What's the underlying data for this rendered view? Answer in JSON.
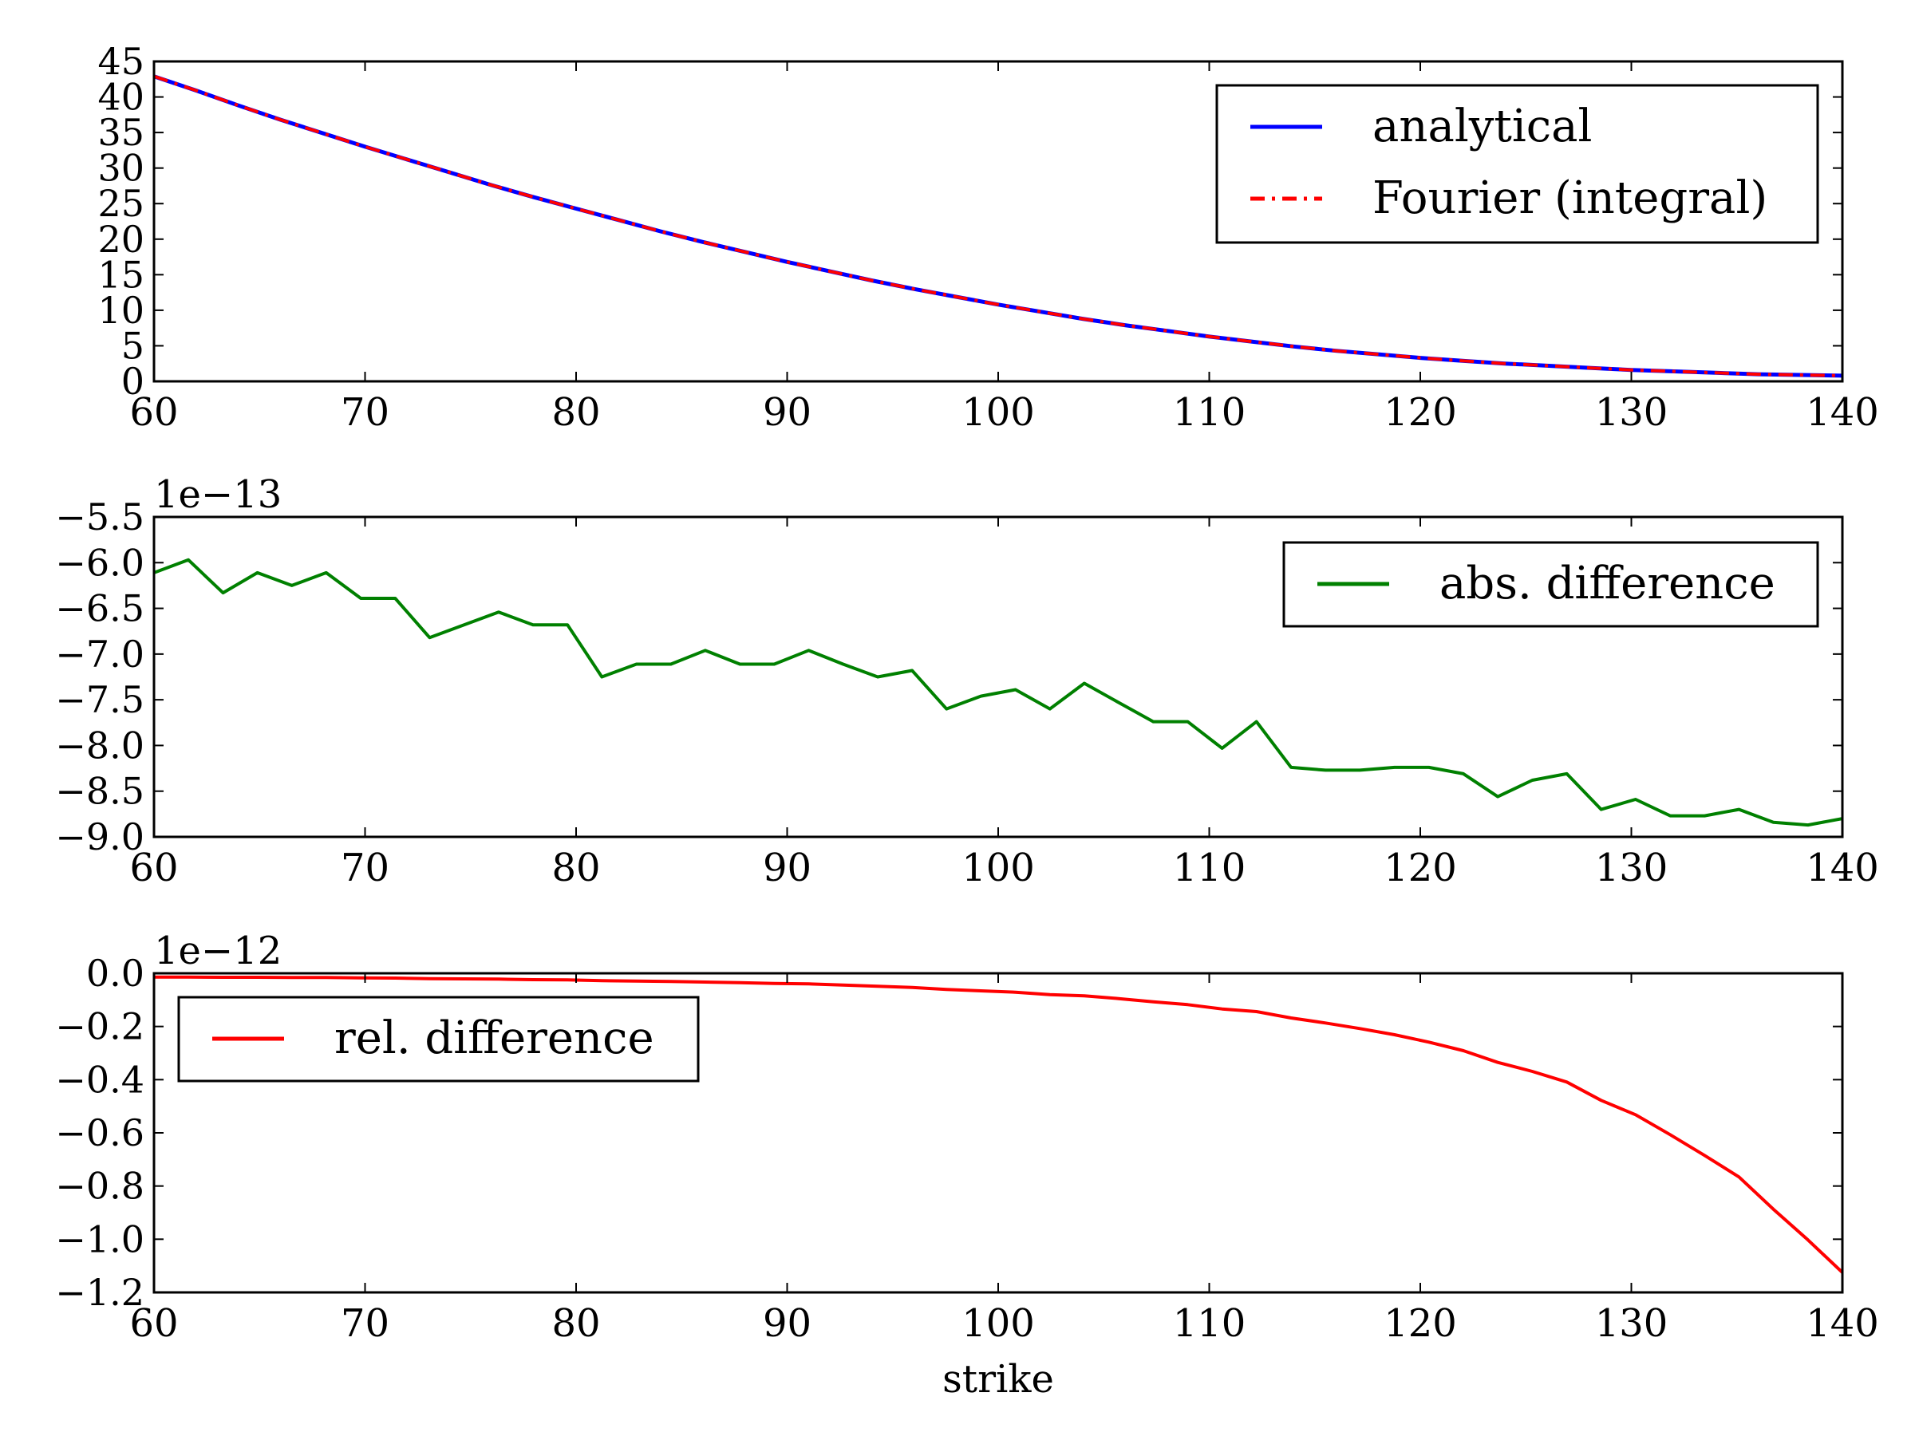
{
  "chart_data": [
    {
      "type": "line",
      "title": "",
      "xlabel": "",
      "ylabel": "",
      "xlim": [
        60,
        140
      ],
      "ylim": [
        0,
        45
      ],
      "xticks": [
        "60",
        "70",
        "80",
        "90",
        "100",
        "110",
        "120",
        "130",
        "140"
      ],
      "yticks": [
        "0",
        "5",
        "10",
        "15",
        "20",
        "25",
        "30",
        "35",
        "40",
        "45"
      ],
      "offset_text": "",
      "legend_position": "upper right",
      "series": [
        {
          "name": "analytical",
          "color": "#0000ff",
          "dash": "solid",
          "x": [
            60,
            62,
            64,
            66,
            68,
            70,
            72,
            74,
            76,
            78,
            80,
            82,
            84,
            86,
            88,
            90,
            92,
            94,
            96,
            98,
            100,
            102,
            104,
            106,
            108,
            110,
            112,
            114,
            116,
            118,
            120,
            122,
            124,
            126,
            128,
            130,
            132,
            134,
            136,
            138,
            140
          ],
          "y": [
            42.9,
            40.9,
            38.8,
            36.8,
            34.9,
            33.0,
            31.2,
            29.4,
            27.6,
            25.9,
            24.3,
            22.7,
            21.1,
            19.6,
            18.2,
            16.8,
            15.5,
            14.2,
            13.0,
            11.9,
            10.8,
            9.8,
            8.8,
            7.9,
            7.1,
            6.3,
            5.6,
            4.9,
            4.3,
            3.8,
            3.3,
            2.9,
            2.5,
            2.2,
            1.9,
            1.6,
            1.4,
            1.2,
            1.0,
            0.9,
            0.8
          ]
        },
        {
          "name": "Fourier (integral)",
          "color": "#ff0000",
          "dash": "dashdot",
          "x": [
            60,
            62,
            64,
            66,
            68,
            70,
            72,
            74,
            76,
            78,
            80,
            82,
            84,
            86,
            88,
            90,
            92,
            94,
            96,
            98,
            100,
            102,
            104,
            106,
            108,
            110,
            112,
            114,
            116,
            118,
            120,
            122,
            124,
            126,
            128,
            130,
            132,
            134,
            136,
            138,
            140
          ],
          "y": [
            42.9,
            40.9,
            38.8,
            36.8,
            34.9,
            33.0,
            31.2,
            29.4,
            27.6,
            25.9,
            24.3,
            22.7,
            21.1,
            19.6,
            18.2,
            16.8,
            15.5,
            14.2,
            13.0,
            11.9,
            10.8,
            9.8,
            8.8,
            7.9,
            7.1,
            6.3,
            5.6,
            4.9,
            4.3,
            3.8,
            3.3,
            2.9,
            2.5,
            2.2,
            1.9,
            1.6,
            1.4,
            1.2,
            1.0,
            0.9,
            0.8
          ]
        }
      ]
    },
    {
      "type": "line",
      "title": "",
      "xlabel": "",
      "ylabel": "",
      "xlim": [
        60,
        140
      ],
      "ylim": [
        -9.0,
        -5.5
      ],
      "xticks": [
        "60",
        "70",
        "80",
        "90",
        "100",
        "110",
        "120",
        "130",
        "140"
      ],
      "yticks": [
        "−9.0",
        "−8.5",
        "−8.0",
        "−7.5",
        "−7.0",
        "−6.5",
        "−6.0",
        "−5.5"
      ],
      "offset_text": "1e−13",
      "legend_position": "upper right",
      "series": [
        {
          "name": "abs. difference",
          "color": "#008000",
          "dash": "solid",
          "x": [
            60.0,
            61.63,
            63.27,
            64.9,
            66.53,
            68.16,
            69.8,
            71.43,
            73.06,
            74.69,
            76.33,
            77.96,
            79.59,
            81.22,
            82.86,
            84.49,
            86.12,
            87.76,
            89.39,
            91.02,
            92.65,
            94.29,
            95.92,
            97.55,
            99.18,
            100.82,
            102.45,
            104.08,
            105.71,
            107.35,
            108.98,
            110.61,
            112.24,
            113.88,
            115.51,
            117.14,
            118.78,
            120.41,
            122.04,
            123.67,
            125.31,
            126.94,
            128.57,
            130.2,
            131.84,
            133.47,
            135.1,
            136.73,
            138.37,
            140.0
          ],
          "y": [
            -6.11,
            -5.97,
            -6.33,
            -6.11,
            -6.25,
            -6.11,
            -6.39,
            -6.39,
            -6.82,
            -6.68,
            -6.54,
            -6.68,
            -6.68,
            -7.25,
            -7.11,
            -7.11,
            -6.96,
            -7.11,
            -7.11,
            -6.96,
            -7.11,
            -7.25,
            -7.18,
            -7.6,
            -7.46,
            -7.39,
            -7.6,
            -7.32,
            -7.53,
            -7.74,
            -7.74,
            -8.03,
            -7.74,
            -8.24,
            -8.27,
            -8.27,
            -8.24,
            -8.24,
            -8.31,
            -8.56,
            -8.38,
            -8.31,
            -8.7,
            -8.59,
            -8.77,
            -8.77,
            -8.7,
            -8.84,
            -8.87,
            -8.8
          ]
        }
      ]
    },
    {
      "type": "line",
      "title": "",
      "xlabel": "strike",
      "ylabel": "",
      "xlim": [
        60,
        140
      ],
      "ylim": [
        -1.2,
        0.0
      ],
      "xticks": [
        "60",
        "70",
        "80",
        "90",
        "100",
        "110",
        "120",
        "130",
        "140"
      ],
      "yticks": [
        "−1.2",
        "−1.0",
        "−0.8",
        "−0.6",
        "−0.4",
        "−0.2",
        "0.0"
      ],
      "offset_text": "1e−12",
      "legend_position": "upper left",
      "series": [
        {
          "name": "rel. difference",
          "color": "#ff0000",
          "dash": "solid",
          "x": [
            60.0,
            61.63,
            63.27,
            64.9,
            66.53,
            68.16,
            69.8,
            71.43,
            73.06,
            74.69,
            76.33,
            77.96,
            79.59,
            81.22,
            82.86,
            84.49,
            86.12,
            87.76,
            89.39,
            91.02,
            92.65,
            94.29,
            95.92,
            97.55,
            99.18,
            100.82,
            102.45,
            104.08,
            105.71,
            107.35,
            108.98,
            110.61,
            112.24,
            113.88,
            115.51,
            117.14,
            118.78,
            120.41,
            122.04,
            123.67,
            125.31,
            126.94,
            128.57,
            130.2,
            131.84,
            133.47,
            135.1,
            136.73,
            138.37,
            140.0
          ],
          "y": [
            -0.014,
            -0.014,
            -0.015,
            -0.015,
            -0.016,
            -0.016,
            -0.017,
            -0.018,
            -0.02,
            -0.021,
            -0.022,
            -0.024,
            -0.025,
            -0.028,
            -0.029,
            -0.031,
            -0.033,
            -0.035,
            -0.038,
            -0.04,
            -0.044,
            -0.049,
            -0.053,
            -0.061,
            -0.066,
            -0.071,
            -0.08,
            -0.085,
            -0.095,
            -0.107,
            -0.118,
            -0.134,
            -0.144,
            -0.168,
            -0.187,
            -0.208,
            -0.231,
            -0.259,
            -0.291,
            -0.335,
            -0.369,
            -0.409,
            -0.478,
            -0.532,
            -0.607,
            -0.685,
            -0.766,
            -0.887,
            -1.003,
            -1.125
          ]
        }
      ]
    }
  ]
}
